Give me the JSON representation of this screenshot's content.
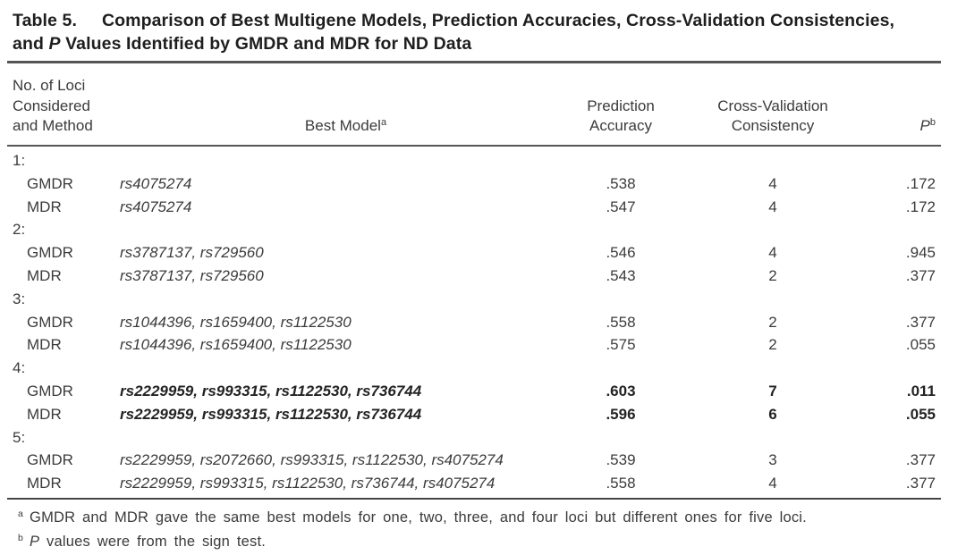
{
  "title": {
    "label": "Table 5.",
    "line1": "Comparison of Best Multigene Models, Prediction Accuracies, Cross-Validation Consistencies,",
    "line2_pre": "and ",
    "line2_italic": "P",
    "line2_post": " Values Identified by GMDR and MDR for ND Data"
  },
  "table": {
    "headers": {
      "col_method": "No. of Loci\nConsidered\nand Method",
      "col_model": "Best Model",
      "col_model_sup": "a",
      "col_accuracy": "Prediction\nAccuracy",
      "col_cvc": "Cross-Validation\nConsistency",
      "col_p": "P",
      "col_p_sup": "b"
    },
    "sections": [
      {
        "label": "1:",
        "rows": [
          {
            "method": "GMDR",
            "model": "rs4075274",
            "accuracy": ".538",
            "cvc": "4",
            "p": ".172",
            "bold": false
          },
          {
            "method": "MDR",
            "model": "rs4075274",
            "accuracy": ".547",
            "cvc": "4",
            "p": ".172",
            "bold": false
          }
        ]
      },
      {
        "label": "2:",
        "rows": [
          {
            "method": "GMDR",
            "model": "rs3787137, rs729560",
            "accuracy": ".546",
            "cvc": "4",
            "p": ".945",
            "bold": false
          },
          {
            "method": "MDR",
            "model": "rs3787137, rs729560",
            "accuracy": ".543",
            "cvc": "2",
            "p": ".377",
            "bold": false
          }
        ]
      },
      {
        "label": "3:",
        "rows": [
          {
            "method": "GMDR",
            "model": "rs1044396, rs1659400, rs1122530",
            "accuracy": ".558",
            "cvc": "2",
            "p": ".377",
            "bold": false
          },
          {
            "method": "MDR",
            "model": "rs1044396, rs1659400, rs1122530",
            "accuracy": ".575",
            "cvc": "2",
            "p": ".055",
            "bold": false
          }
        ]
      },
      {
        "label": "4:",
        "rows": [
          {
            "method": "GMDR",
            "model": "rs2229959, rs993315, rs1122530, rs736744",
            "accuracy": ".603",
            "cvc": "7",
            "p": ".011",
            "bold": true
          },
          {
            "method": "MDR",
            "model": "rs2229959, rs993315, rs1122530, rs736744",
            "accuracy": ".596",
            "cvc": "6",
            "p": ".055",
            "bold": true
          }
        ]
      },
      {
        "label": "5:",
        "rows": [
          {
            "method": "GMDR",
            "model": "rs2229959, rs2072660, rs993315, rs1122530, rs4075274",
            "accuracy": ".539",
            "cvc": "3",
            "p": ".377",
            "bold": false
          },
          {
            "method": "MDR",
            "model": "rs2229959, rs993315, rs1122530, rs736744, rs4075274",
            "accuracy": ".558",
            "cvc": "4",
            "p": ".377",
            "bold": false
          }
        ]
      }
    ]
  },
  "footnotes": [
    {
      "sup": "a",
      "italic_lead": "",
      "text": "GMDR and MDR gave the same best models for one, two, three, and four loci but different ones for five loci."
    },
    {
      "sup": "b",
      "italic_lead": "P",
      "text": " values were from the sign test."
    }
  ],
  "colors": {
    "background": "#ffffff",
    "text": "#3b3b3b",
    "title_text": "#1e1e1e",
    "rule": "#555555",
    "bold_text": "#232323"
  }
}
